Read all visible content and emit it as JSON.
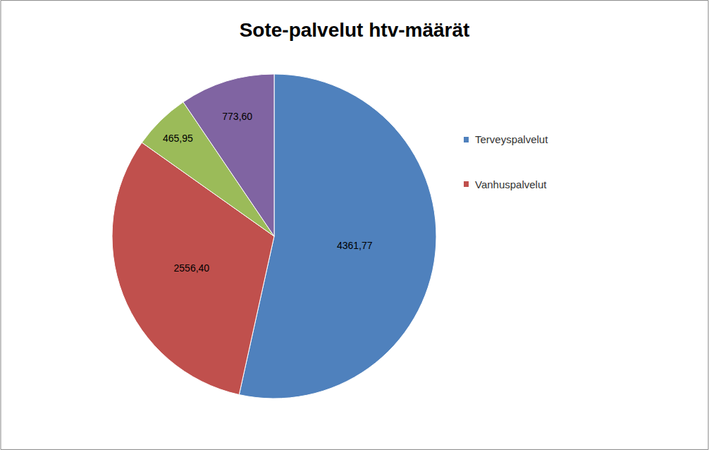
{
  "chart_data": {
    "type": "pie",
    "title": "Sote-palvelut htv-määrät",
    "categories": [
      "Terveyspalvelut",
      "Vanhuspalvelut",
      null,
      null
    ],
    "values": [
      4361.77,
      2556.4,
      465.95,
      773.6
    ],
    "value_labels": [
      "4361,77",
      "2556,40",
      "465,95",
      "773,60"
    ],
    "colors": [
      "#4f81bd",
      "#c0504d",
      "#9bbb59",
      "#8064a2"
    ],
    "data_labels": true,
    "legend": "right"
  }
}
